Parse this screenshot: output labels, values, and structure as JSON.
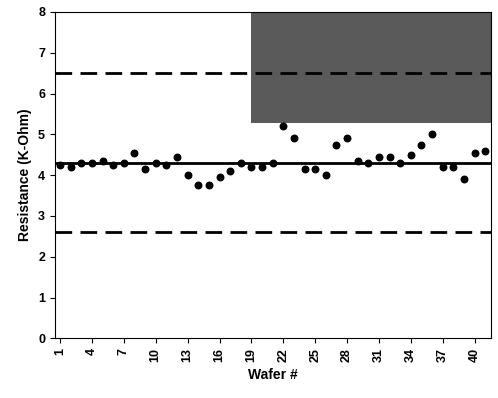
{
  "chart_data": {
    "type": "scatter",
    "xlabel": "Wafer #",
    "ylabel": "Resistance (K-Ohm)",
    "x": [
      1,
      2,
      3,
      4,
      5,
      6,
      7,
      8,
      9,
      10,
      11,
      12,
      13,
      14,
      15,
      16,
      17,
      18,
      19,
      20,
      21,
      22,
      23,
      24,
      25,
      26,
      27,
      28,
      29,
      30,
      31,
      32,
      33,
      34,
      35,
      36,
      37,
      38,
      39,
      40,
      41
    ],
    "values": [
      4.25,
      4.2,
      4.3,
      4.3,
      4.35,
      4.25,
      4.3,
      4.55,
      4.15,
      4.3,
      4.25,
      4.45,
      4.0,
      3.75,
      3.75,
      3.95,
      4.1,
      4.3,
      4.2,
      4.2,
      4.3,
      5.2,
      4.9,
      4.15,
      4.15,
      4.0,
      4.75,
      4.9,
      4.35,
      4.3,
      4.45,
      4.45,
      4.3,
      4.5,
      4.75,
      5.0,
      4.2,
      4.2,
      3.9,
      4.55,
      4.6
    ],
    "color": "#000000",
    "marker": "circle",
    "hlines": [
      {
        "value": 4.3,
        "line_style": "solid"
      },
      {
        "value": 6.5,
        "line_style": "dashed"
      },
      {
        "value": 2.6,
        "line_style": "dashed"
      }
    ],
    "xlim": [
      0.5,
      41.5
    ],
    "xticks": [
      1,
      4,
      7,
      10,
      13,
      16,
      19,
      22,
      25,
      28,
      31,
      34,
      37,
      40
    ],
    "ylim": [
      0,
      8
    ],
    "yticks": [
      0,
      1,
      2,
      3,
      4,
      5,
      6,
      7,
      8
    ],
    "grid": false
  }
}
